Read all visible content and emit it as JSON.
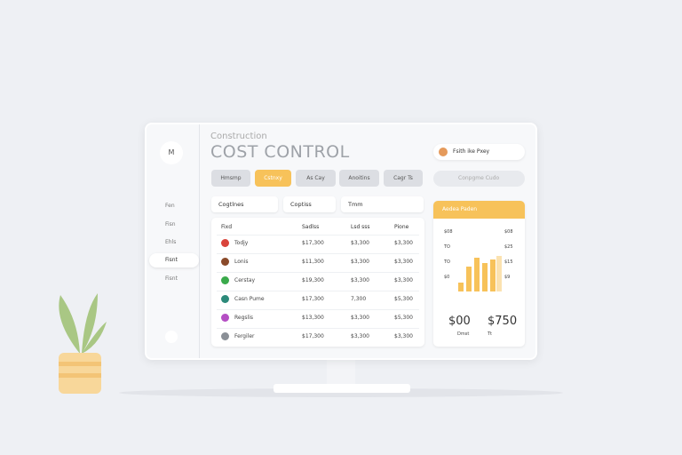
{
  "header": {
    "subtitle": "Construction",
    "title": "COST CONTROL"
  },
  "sidebar": {
    "avatar": "M",
    "items": [
      "Fen",
      "Fisn",
      "Ehls",
      "Fisnt",
      "Fisnt"
    ]
  },
  "tabs": [
    "Hmsmp",
    "Cstnxy",
    "As Cay",
    "Anoitins",
    "Cagr Ts"
  ],
  "filters": [
    "Cogtlnes",
    "Coptiss",
    "Tmm"
  ],
  "table": {
    "columns": [
      "Fixd",
      "Sadlss",
      "Lsd sss",
      "Pione"
    ],
    "rows": [
      [
        "Todjy",
        "$17,300",
        "$3,300",
        "$3,300"
      ],
      [
        "Lonis",
        "$11,300",
        "$3,300",
        "$3,300"
      ],
      [
        "Cerstay",
        "$19,300",
        "$3,300",
        "$3,300"
      ],
      [
        "Casn Pume",
        "$17,300",
        "7,300",
        "$5,300"
      ],
      [
        "Regslis",
        "$13,300",
        "$3,300",
        "$5,300"
      ],
      [
        "Fergiler",
        "$17,300",
        "$3,300",
        "$3,300"
      ]
    ]
  },
  "user": {
    "name": "Fsith ike Pxey"
  },
  "search": {
    "placeholder": "Conpgme Cudo"
  },
  "panel": {
    "title": "Aedea Paden",
    "left_axis": [
      "$08",
      "TO",
      "TO",
      "$0"
    ],
    "right_axis": [
      "$08",
      "$25",
      "$15",
      "$9"
    ],
    "totals": [
      {
        "value": "$00",
        "label": "Dmst"
      },
      {
        "value": "$750",
        "label": "Tt"
      }
    ]
  }
}
